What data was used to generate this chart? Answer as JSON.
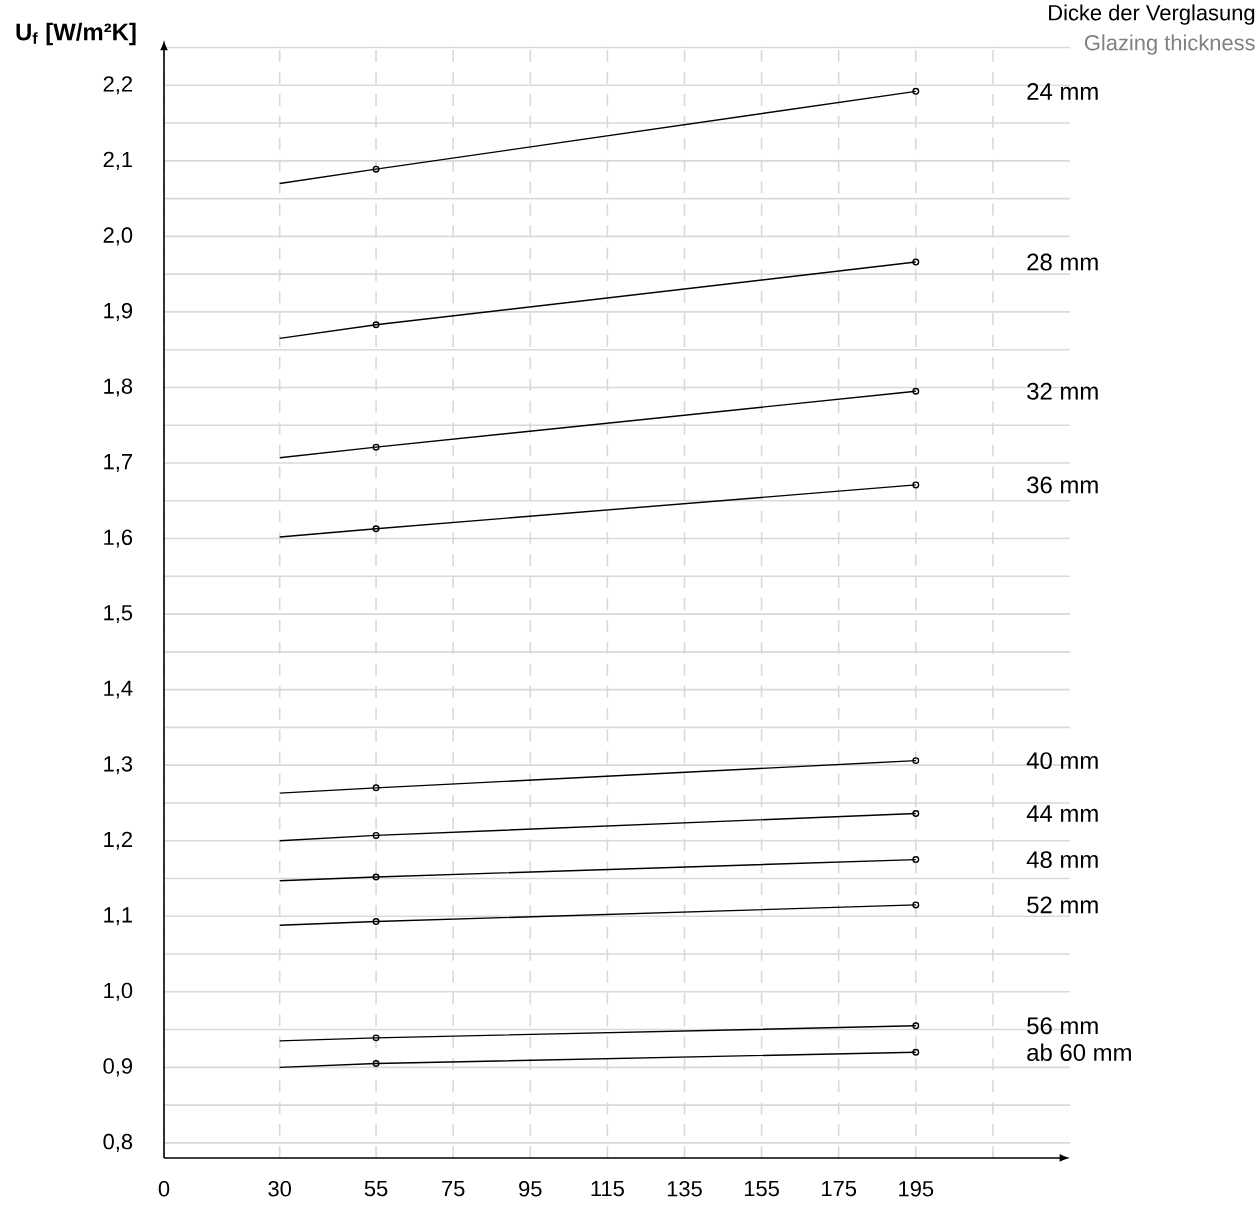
{
  "chart_data": {
    "type": "line",
    "ylabel": "U$_{f}$ [W/m²K]",
    "legend_title": "Dicke der Verglasung",
    "annotations": [
      "Glazing thickness"
    ],
    "xlim": [
      0,
      235
    ],
    "ylim": [
      0.78,
      2.26
    ],
    "xticks": [
      0,
      30,
      55,
      75,
      95,
      115,
      135,
      155,
      175,
      195,
      {
        "value": 215,
        "label": null
      }
    ],
    "yticks": [
      {
        "value": 0.8,
        "label": "0,8"
      },
      {
        "value": 0.85,
        "label": null
      },
      {
        "value": 0.9,
        "label": "0,9"
      },
      {
        "value": 0.95,
        "label": null
      },
      {
        "value": 1.0,
        "label": "1,0"
      },
      {
        "value": 1.05,
        "label": null
      },
      {
        "value": 1.1,
        "label": "1,1"
      },
      {
        "value": 1.15,
        "label": null
      },
      {
        "value": 1.2,
        "label": "1,2"
      },
      {
        "value": 1.25,
        "label": null
      },
      {
        "value": 1.3,
        "label": "1,3"
      },
      {
        "value": 1.35,
        "label": null
      },
      {
        "value": 1.4,
        "label": "1,4"
      },
      {
        "value": 1.45,
        "label": null
      },
      {
        "value": 1.5,
        "label": "1,5"
      },
      {
        "value": 1.55,
        "label": null
      },
      {
        "value": 1.6,
        "label": "1,6"
      },
      {
        "value": 1.65,
        "label": null
      },
      {
        "value": 1.7,
        "label": "1,7"
      },
      {
        "value": 1.75,
        "label": null
      },
      {
        "value": 1.8,
        "label": "1,8"
      },
      {
        "value": 1.85,
        "label": null
      },
      {
        "value": 1.9,
        "label": "1,9"
      },
      {
        "value": 1.95,
        "label": null
      },
      {
        "value": 2.0,
        "label": "2,0"
      },
      {
        "value": 2.05,
        "label": null
      },
      {
        "value": 2.1,
        "label": "2,1"
      },
      {
        "value": 2.15,
        "label": null
      },
      {
        "value": 2.2,
        "label": "2,2"
      },
      {
        "value": 2.25,
        "label": null
      }
    ],
    "grid": true,
    "legend": false,
    "marker": "circle",
    "line_style": "solid",
    "x": [
      30,
      55,
      195
    ],
    "series": [
      {
        "name": "24 mm",
        "color": "#000000",
        "values": [
          2.07,
          2.089,
          2.192
        ]
      },
      {
        "name": "28 mm",
        "color": "#000000",
        "values": [
          1.865,
          1.883,
          1.966
        ]
      },
      {
        "name": "32 mm",
        "color": "#000000",
        "values": [
          1.707,
          1.721,
          1.795
        ]
      },
      {
        "name": "36 mm",
        "color": "#000000",
        "values": [
          1.602,
          1.613,
          1.671
        ]
      },
      {
        "name": "40 mm",
        "color": "#000000",
        "values": [
          1.263,
          1.27,
          1.306
        ]
      },
      {
        "name": "44 mm",
        "color": "#000000",
        "values": [
          1.2,
          1.207,
          1.236
        ]
      },
      {
        "name": "48 mm",
        "color": "#000000",
        "values": [
          1.147,
          1.152,
          1.175
        ]
      },
      {
        "name": "52 mm",
        "color": "#000000",
        "values": [
          1.088,
          1.093,
          1.115
        ]
      },
      {
        "name": "56 mm",
        "color": "#000000",
        "values": [
          0.935,
          0.939,
          0.955
        ]
      },
      {
        "name": "ab 60 mm",
        "color": "#000000",
        "values": [
          0.9,
          0.905,
          0.92
        ]
      }
    ]
  }
}
